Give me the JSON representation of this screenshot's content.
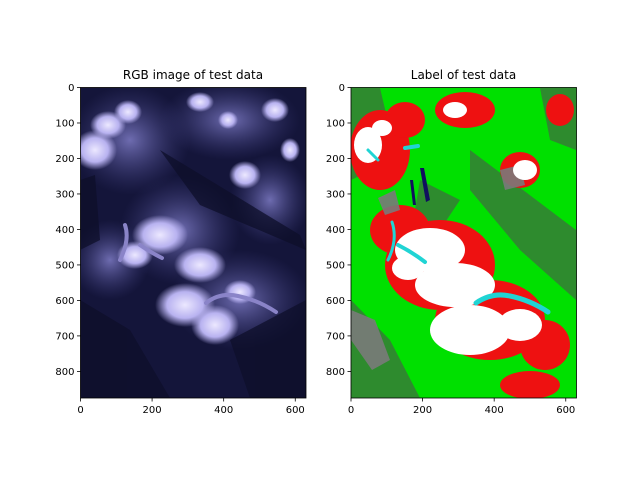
{
  "chart_data": [
    {
      "type": "image",
      "title": "RGB image of test data",
      "xlim": [
        0,
        630
      ],
      "ylim": [
        875,
        0
      ],
      "xticks": [
        0,
        200,
        400,
        600
      ],
      "yticks": [
        0,
        100,
        200,
        300,
        400,
        500,
        600,
        700,
        800
      ],
      "colors": {
        "background": "#11122e",
        "shadow": "#1b1c45",
        "midtone": "#5a5a9c",
        "snow": "#d8d4ff",
        "glacier": "#8a84c8"
      }
    },
    {
      "type": "image",
      "title": "Label of test data",
      "xlim": [
        0,
        630
      ],
      "ylim": [
        875,
        0
      ],
      "xticks": [
        0,
        200,
        400,
        600
      ],
      "yticks": [
        0,
        100,
        200,
        300,
        400,
        500,
        600,
        700,
        800
      ],
      "colors": {
        "vegetation": "#00e000",
        "forest": "#2e8b2e",
        "rock": "#ee1111",
        "snow": "#ffffff",
        "glacier": "#20d4d4",
        "debris": "#7a7a7a",
        "water": "#10105e"
      }
    }
  ]
}
